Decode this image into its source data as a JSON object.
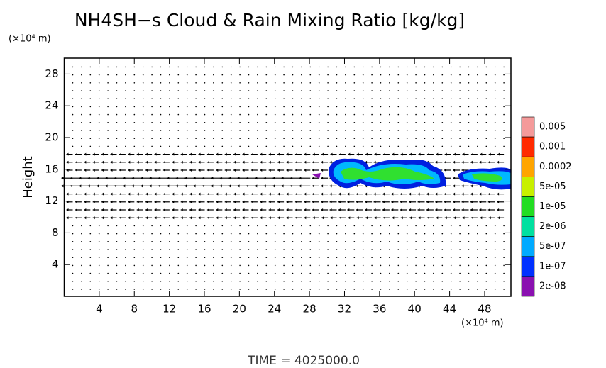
{
  "chart_data": {
    "type": "contour",
    "title": "NH4SH−s Cloud & Rain Mixing Ratio [kg/kg]",
    "x_unit": "(×10⁴ m)",
    "y_unit": "(×10⁴ m)",
    "ylabel": "Height",
    "footer": "TIME = 4025000.0",
    "xlim": [
      0,
      51
    ],
    "ylim": [
      0,
      30
    ],
    "xticks": [
      4,
      8,
      12,
      16,
      20,
      24,
      28,
      32,
      36,
      40,
      44,
      48
    ],
    "yticks": [
      4,
      8,
      12,
      16,
      20,
      24,
      28
    ],
    "colorbar": {
      "labels": [
        "0.005",
        "0.001",
        "0.0002",
        "5e-05",
        "1e-05",
        "2e-06",
        "5e-07",
        "1e-07",
        "2e-08"
      ],
      "colors": [
        "#f49a9a",
        "#ff2a00",
        "#ffa500",
        "#c8f000",
        "#22dd22",
        "#00e0a0",
        "#00aaff",
        "#0030ff",
        "#8a10b0"
      ]
    }
  }
}
